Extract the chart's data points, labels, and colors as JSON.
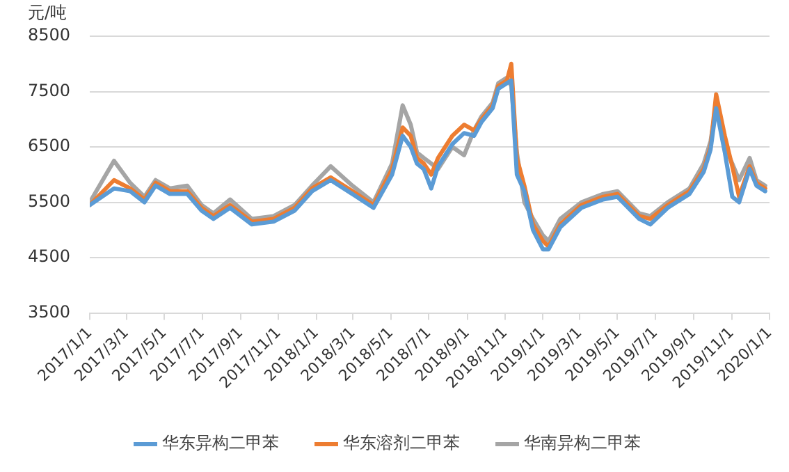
{
  "chart_data": {
    "type": "line",
    "ylabel": "元/吨",
    "x": [
      "2017-01-01",
      "2017-02-09",
      "2017-03-07",
      "2017-03-30",
      "2017-04-17",
      "2017-05-10",
      "2017-06-07",
      "2017-06-30",
      "2017-07-19",
      "2017-08-15",
      "2017-09-19",
      "2017-10-24",
      "2017-11-27",
      "2017-12-25",
      "2018-01-24",
      "2018-02-28",
      "2018-04-03",
      "2018-05-03",
      "2018-05-20",
      "2018-06-02",
      "2018-06-12",
      "2018-06-23",
      "2018-07-05",
      "2018-07-16",
      "2018-08-08",
      "2018-08-27",
      "2018-09-12",
      "2018-09-24",
      "2018-10-12",
      "2018-10-21",
      "2018-11-04",
      "2018-11-11",
      "2018-11-20",
      "2018-12-02",
      "2018-12-16",
      "2019-01-01",
      "2019-01-10",
      "2019-01-29",
      "2019-03-04",
      "2019-04-08",
      "2019-05-01",
      "2019-06-05",
      "2019-06-23",
      "2019-07-21",
      "2019-08-25",
      "2019-09-17",
      "2019-09-28",
      "2019-10-07",
      "2019-10-21",
      "2019-11-02",
      "2019-11-13",
      "2019-11-30",
      "2019-12-11",
      "2019-12-25"
    ],
    "series": [
      {
        "name": "华东异构二甲苯",
        "color": "#5b9bd5",
        "values": [
          5450,
          5750,
          5700,
          5500,
          5800,
          5650,
          5650,
          5350,
          5200,
          5400,
          5100,
          5150,
          5350,
          5700,
          5900,
          5650,
          5400,
          6000,
          6700,
          6500,
          6200,
          6100,
          5750,
          6150,
          6550,
          6750,
          6700,
          6950,
          7200,
          7550,
          7650,
          7700,
          6000,
          5700,
          5000,
          4650,
          4650,
          5050,
          5400,
          5550,
          5600,
          5200,
          5100,
          5400,
          5650,
          6050,
          6450,
          7200,
          6400,
          5600,
          5500,
          6100,
          5800,
          5700
        ]
      },
      {
        "name": "华东溶剂二甲苯",
        "color": "#ed7d31",
        "values": [
          5450,
          5900,
          5750,
          5550,
          5850,
          5700,
          5700,
          5400,
          5250,
          5450,
          5150,
          5200,
          5400,
          5750,
          5950,
          5700,
          5450,
          6100,
          6850,
          6700,
          6300,
          6200,
          6000,
          6300,
          6700,
          6900,
          6800,
          7000,
          7250,
          7600,
          7700,
          8000,
          6300,
          5800,
          5100,
          4800,
          4700,
          5100,
          5450,
          5600,
          5650,
          5250,
          5200,
          5450,
          5700,
          6100,
          6500,
          7450,
          6700,
          6150,
          5600,
          6150,
          5850,
          5750
        ]
      },
      {
        "name": "华南异构二甲苯",
        "color": "#a5a5a5",
        "values": [
          5500,
          6250,
          5850,
          5600,
          5900,
          5750,
          5800,
          5450,
          5300,
          5550,
          5200,
          5250,
          5450,
          5800,
          6150,
          5800,
          5500,
          6200,
          7250,
          6900,
          6400,
          6300,
          6200,
          6100,
          6500,
          6350,
          6800,
          7050,
          7300,
          7650,
          7750,
          7600,
          6400,
          5500,
          5200,
          4900,
          4800,
          5200,
          5500,
          5650,
          5700,
          5300,
          5250,
          5500,
          5750,
          6200,
          6600,
          7250,
          6500,
          6200,
          5900,
          6300,
          5900,
          5800
        ]
      }
    ],
    "xlim": [
      "2017-01-01",
      "2020-01-01"
    ],
    "xticks": [
      {
        "value": "2017-01-01",
        "label": "2017/1/1"
      },
      {
        "value": "2017-03-01",
        "label": "2017/3/1"
      },
      {
        "value": "2017-05-01",
        "label": "2017/5/1"
      },
      {
        "value": "2017-07-01",
        "label": "2017/7/1"
      },
      {
        "value": "2017-09-01",
        "label": "2017/9/1"
      },
      {
        "value": "2017-11-01",
        "label": "2017/11/1"
      },
      {
        "value": "2018-01-01",
        "label": "2018/1/1"
      },
      {
        "value": "2018-03-01",
        "label": "2018/3/1"
      },
      {
        "value": "2018-05-01",
        "label": "2018/5/1"
      },
      {
        "value": "2018-07-01",
        "label": "2018/7/1"
      },
      {
        "value": "2018-09-01",
        "label": "2018/9/1"
      },
      {
        "value": "2018-11-01",
        "label": "2018/11/1"
      },
      {
        "value": "2019-01-01",
        "label": "2019/1/1"
      },
      {
        "value": "2019-03-01",
        "label": "2019/3/1"
      },
      {
        "value": "2019-05-01",
        "label": "2019/5/1"
      },
      {
        "value": "2019-07-01",
        "label": "2019/7/1"
      },
      {
        "value": "2019-09-01",
        "label": "2019/9/1"
      },
      {
        "value": "2019-11-01",
        "label": "2019/11/1"
      },
      {
        "value": "2020-01-01",
        "label": "2020/1/1"
      }
    ],
    "ylim": [
      3500,
      8500
    ],
    "yticks": [
      3500,
      4500,
      5500,
      6500,
      7500,
      8500
    ],
    "grid": "y",
    "legend": "bottom",
    "marker": "none",
    "line_style": "solid"
  }
}
